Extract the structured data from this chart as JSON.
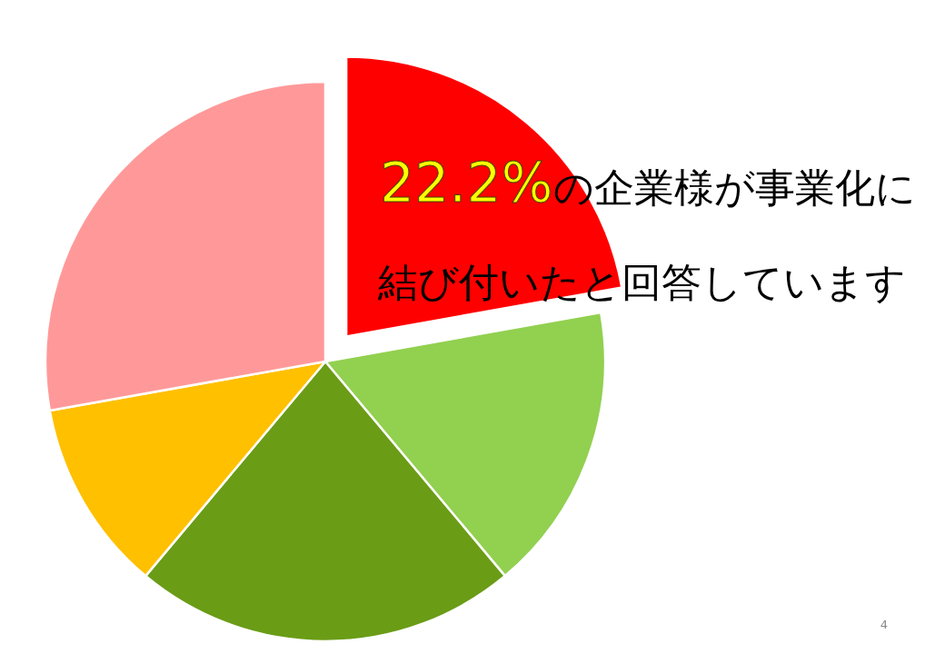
{
  "chart_data": {
    "type": "pie",
    "categories": [
      null,
      null,
      null,
      null,
      null
    ],
    "values": [
      22.2,
      16.7,
      22.2,
      11.1,
      27.8
    ],
    "colors": [
      "#ff0000",
      "#92d050",
      "#6a9c16",
      "#ffc000",
      "#ff9999"
    ],
    "annotations": [
      "22.2%",
      "の企業様が事業化に",
      "結び付いたと回答しています",
      "4"
    ]
  }
}
